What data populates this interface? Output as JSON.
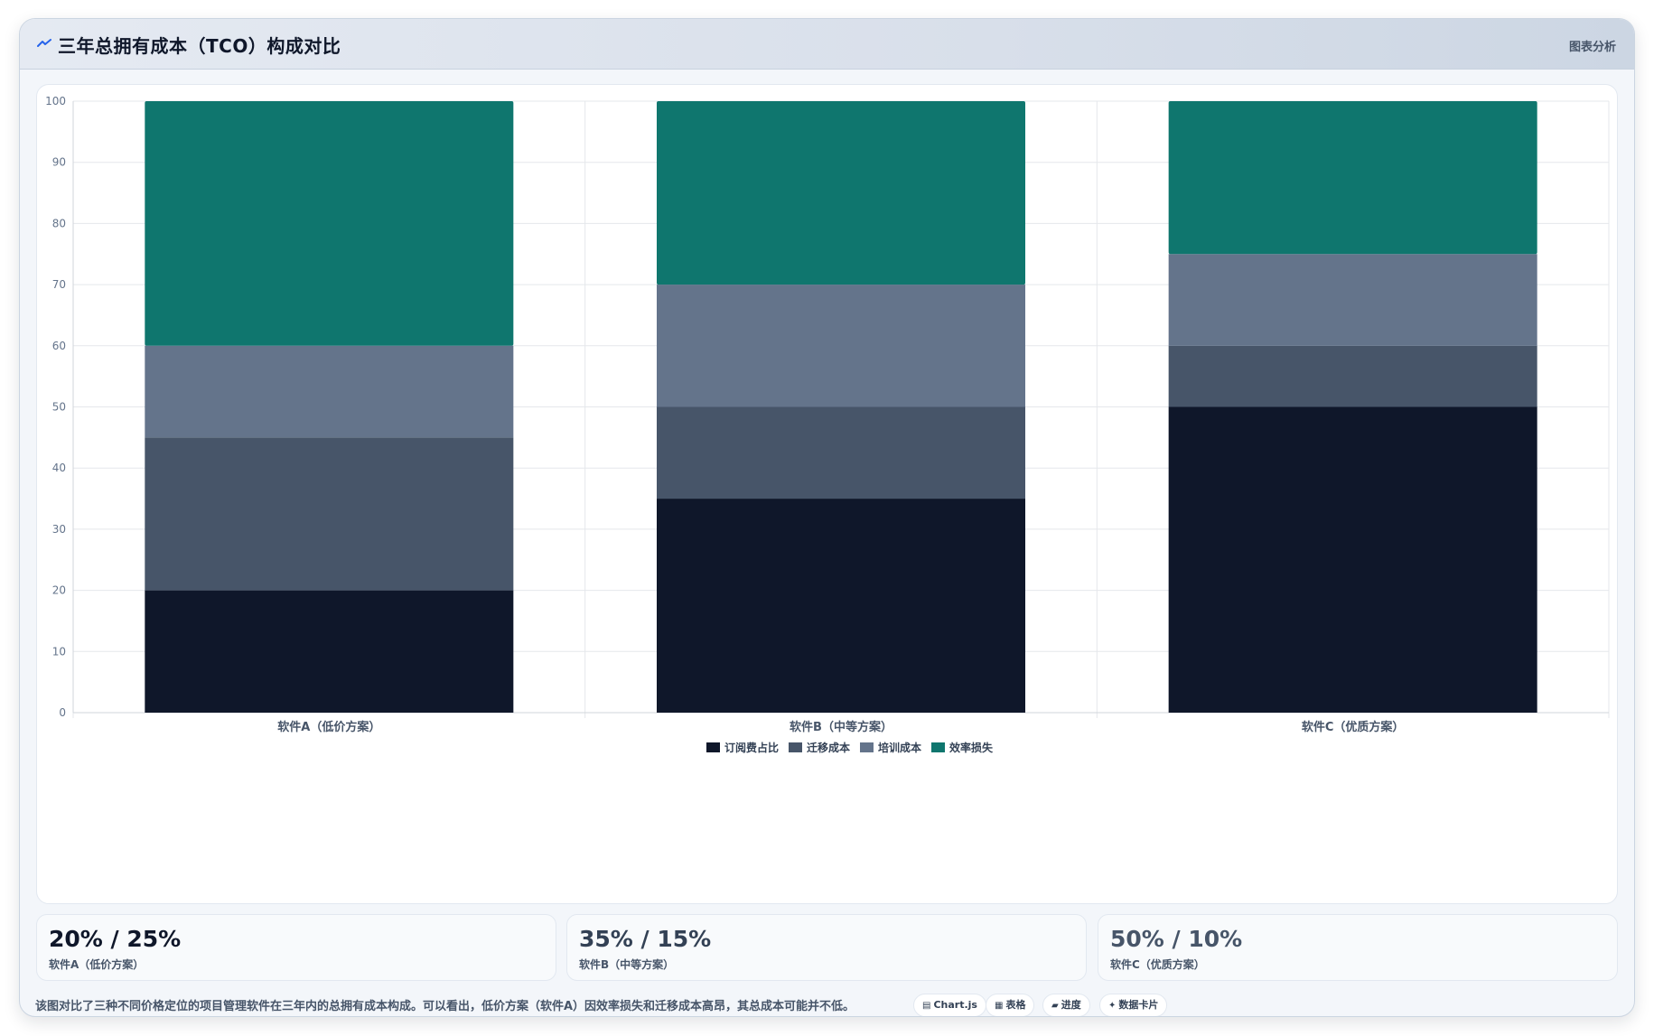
{
  "header": {
    "title": "三年总拥有成本（TCO）构成对比",
    "action_label": "图表分析",
    "icon": "trend-line-icon",
    "icon_color": "#2563eb"
  },
  "chart_data": {
    "type": "bar",
    "stacked": true,
    "categories": [
      "软件A（低价方案）",
      "软件B（中等方案）",
      "软件C（优质方案）"
    ],
    "series": [
      {
        "name": "订阅费占比",
        "values": [
          20,
          35,
          50
        ],
        "color": "#0f172a"
      },
      {
        "name": "迁移成本",
        "values": [
          25,
          15,
          10
        ],
        "color": "#475569"
      },
      {
        "name": "培训成本",
        "values": [
          15,
          20,
          15
        ],
        "color": "#64748b"
      },
      {
        "name": "效率损失",
        "values": [
          40,
          30,
          25
        ],
        "color": "#0f766e"
      }
    ],
    "ylim": [
      0,
      100
    ],
    "yticks": [
      0,
      10,
      20,
      30,
      40,
      50,
      60,
      70,
      80,
      90,
      100
    ],
    "grid": true,
    "legend": "bottom"
  },
  "stats": [
    {
      "value": "20% / 25%",
      "label": "软件A（低价方案）",
      "color": "#0f172a"
    },
    {
      "value": "35% / 15%",
      "label": "软件B（中等方案）",
      "color": "#334155"
    },
    {
      "value": "50% / 10%",
      "label": "软件C（优质方案）",
      "color": "#475569"
    }
  ],
  "footer": {
    "note": "该图对比了三种不同价格定位的项目管理软件在三年内的总拥有成本构成。可以看出，低价方案（软件A）因效率损失和迁移成本高昂，其总成本可能并不低。"
  },
  "tags": [
    {
      "icon": "▤",
      "label": "Chart.js",
      "icon_name": "chart-icon"
    },
    {
      "icon": "▦",
      "label": "表格",
      "icon_name": "table-icon"
    },
    {
      "icon": "▰",
      "label": "进度",
      "icon_name": "progress-icon"
    },
    {
      "icon": "✦",
      "label": "数据卡片",
      "icon_name": "card-icon"
    }
  ]
}
